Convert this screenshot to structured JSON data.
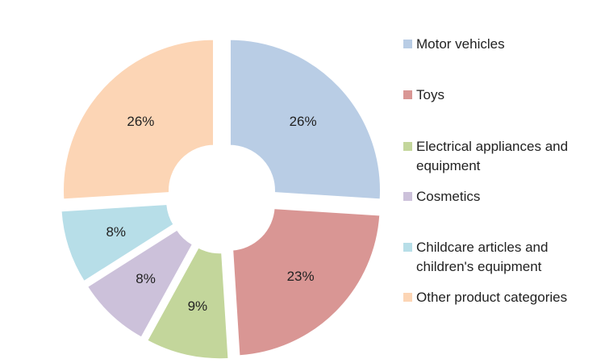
{
  "chart_data": {
    "type": "pie",
    "variant": "exploded-donut",
    "title": "",
    "legend_position": "right",
    "slices": [
      {
        "label": "Motor vehicles",
        "value": 26,
        "display": "26%",
        "color": "#B9CDE5"
      },
      {
        "label": "Toys",
        "value": 23,
        "display": "23%",
        "color": "#D99694"
      },
      {
        "label": "Electrical appliances and equipment",
        "value": 9,
        "display": "9%",
        "color": "#C3D69B"
      },
      {
        "label": "Cosmetics",
        "value": 8,
        "display": "8%",
        "color": "#CCC1DA"
      },
      {
        "label": "Childcare articles and children's equipment",
        "value": 8,
        "display": "8%",
        "color": "#B7DEE8"
      },
      {
        "label": "Other product categories",
        "value": 26,
        "display": "26%",
        "color": "#FCD5B5"
      }
    ]
  }
}
